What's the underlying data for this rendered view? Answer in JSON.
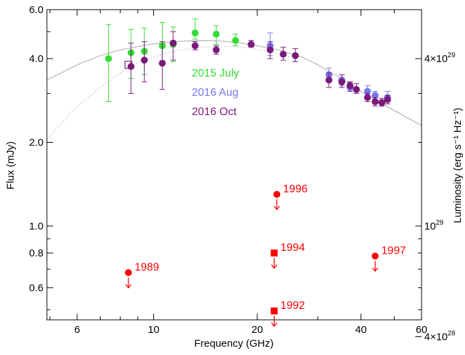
{
  "chart_data": {
    "type": "scatter",
    "xlabel": "Frequency (GHz)",
    "ylabel": "Flux (mJy)",
    "y2label": "Luminosity (erg s⁻¹ Hz⁻¹)",
    "xscale": "log",
    "yscale": "log",
    "xlim": [
      4.9,
      60
    ],
    "ylim": [
      0.46,
      6.0
    ],
    "xticks": [
      {
        "value": 6,
        "label": "6"
      },
      {
        "value": 10,
        "label": "10"
      },
      {
        "value": 20,
        "label": "20"
      },
      {
        "value": 40,
        "label": "40"
      },
      {
        "value": 60,
        "label": "60"
      }
    ],
    "yticks": [
      {
        "value": 0.6,
        "label": "0.6"
      },
      {
        "value": 0.8,
        "label": "0.8"
      },
      {
        "value": 1.0,
        "label": "1.0"
      },
      {
        "value": 2.0,
        "label": "2.0"
      },
      {
        "value": 4.0,
        "label": "4.0"
      },
      {
        "value": 6.0,
        "label": "6.0"
      }
    ],
    "y2ticks": [
      {
        "value": 4.0,
        "mantissa": "4×10",
        "exp": "29"
      },
      {
        "value": 1.0,
        "mantissa": "10",
        "exp": "29"
      },
      {
        "value": 0.4,
        "mantissa": "4×10",
        "exp": "28"
      }
    ],
    "legend_position": "center-left",
    "series": [
      {
        "name": "2015 July",
        "color": "#33dd33",
        "marker": "circle",
        "points": [
          {
            "x": 7.4,
            "y": 4.0,
            "lo": 2.8,
            "hi": 5.3
          },
          {
            "x": 8.6,
            "y": 4.2,
            "lo": 3.4,
            "hi": 5.1
          },
          {
            "x": 9.4,
            "y": 4.25,
            "lo": 3.5,
            "hi": 5.15
          },
          {
            "x": 10.6,
            "y": 4.45,
            "lo": 3.8,
            "hi": 5.4
          },
          {
            "x": 11.4,
            "y": 4.5,
            "lo": 3.9,
            "hi": 5.2
          },
          {
            "x": 13.2,
            "y": 4.95,
            "lo": 4.7,
            "hi": 5.55
          },
          {
            "x": 15.2,
            "y": 4.9,
            "lo": 4.5,
            "hi": 5.25
          },
          {
            "x": 17.3,
            "y": 4.65,
            "lo": 4.45,
            "hi": 4.9
          }
        ]
      },
      {
        "name": "2016 Aug",
        "color": "#7777ee",
        "marker": "circle",
        "points": [
          {
            "x": 21.8,
            "y": 4.45,
            "lo": 4.1,
            "hi": 4.95
          },
          {
            "x": 32.3,
            "y": 3.5,
            "lo": 3.3,
            "hi": 3.7
          },
          {
            "x": 35.2,
            "y": 3.35,
            "lo": 3.2,
            "hi": 3.5
          },
          {
            "x": 37.2,
            "y": 3.15,
            "lo": 3.05,
            "hi": 3.3
          },
          {
            "x": 41.8,
            "y": 3.05,
            "lo": 2.95,
            "hi": 3.2
          },
          {
            "x": 44.0,
            "y": 2.95,
            "lo": 2.85,
            "hi": 3.05
          },
          {
            "x": 47.8,
            "y": 2.9,
            "lo": 2.8,
            "hi": 3.05
          }
        ]
      },
      {
        "name": "2016 Oct",
        "color": "#7a1a7a",
        "marker": "circle",
        "points": [
          {
            "x": 8.6,
            "y": 3.75,
            "lo": 3.0,
            "hi": 4.55
          },
          {
            "x": 9.4,
            "y": 3.95,
            "lo": 3.3,
            "hi": 4.6
          },
          {
            "x": 10.6,
            "y": 3.85,
            "lo": 3.1,
            "hi": 4.6
          },
          {
            "x": 11.4,
            "y": 4.55,
            "lo": 3.95,
            "hi": 5.0
          },
          {
            "x": 13.2,
            "y": 4.45,
            "lo": 4.3,
            "hi": 4.6
          },
          {
            "x": 15.2,
            "y": 4.3,
            "lo": 4.15,
            "hi": 4.45
          },
          {
            "x": 19.2,
            "y": 4.5,
            "lo": 4.4,
            "hi": 4.65
          },
          {
            "x": 21.8,
            "y": 4.3,
            "lo": 4.0,
            "hi": 4.6
          },
          {
            "x": 23.8,
            "y": 4.15,
            "lo": 3.95,
            "hi": 4.4
          },
          {
            "x": 25.8,
            "y": 4.1,
            "lo": 3.9,
            "hi": 4.35
          },
          {
            "x": 32.3,
            "y": 3.35,
            "lo": 3.15,
            "hi": 3.55
          },
          {
            "x": 35.2,
            "y": 3.3,
            "lo": 3.15,
            "hi": 3.5
          },
          {
            "x": 37.2,
            "y": 3.2,
            "lo": 3.05,
            "hi": 3.3
          },
          {
            "x": 38.8,
            "y": 3.1,
            "lo": 3.0,
            "hi": 3.25
          },
          {
            "x": 41.8,
            "y": 2.9,
            "lo": 2.8,
            "hi": 3.0
          },
          {
            "x": 44.0,
            "y": 2.8,
            "lo": 2.7,
            "hi": 2.9
          },
          {
            "x": 46.0,
            "y": 2.78,
            "lo": 2.7,
            "hi": 2.88
          },
          {
            "x": 47.8,
            "y": 2.85,
            "lo": 2.75,
            "hi": 2.95
          }
        ]
      }
    ],
    "open_marker": {
      "x": 8.45,
      "y": 3.8,
      "color": "#7a1a7a",
      "marker": "open-square"
    },
    "model_curves": [
      {
        "style": "solid",
        "color": "#bbbbbb",
        "points": [
          [
            4.9,
            3.35
          ],
          [
            6,
            3.8
          ],
          [
            7,
            4.1
          ],
          [
            8,
            4.3
          ],
          [
            9,
            4.42
          ],
          [
            10,
            4.52
          ],
          [
            12,
            4.62
          ],
          [
            14,
            4.65
          ],
          [
            16,
            4.62
          ],
          [
            18,
            4.55
          ],
          [
            20,
            4.45
          ],
          [
            23,
            4.3
          ],
          [
            27,
            4.05
          ],
          [
            30,
            3.8
          ],
          [
            35,
            3.4
          ],
          [
            40,
            3.05
          ],
          [
            45,
            2.8
          ],
          [
            50,
            2.6
          ],
          [
            60,
            2.3
          ]
        ]
      },
      {
        "style": "dotted",
        "color": "#bbbbbb",
        "points": [
          [
            4.9,
            2.05
          ],
          [
            5.5,
            2.4
          ],
          [
            6,
            2.7
          ],
          [
            7,
            3.15
          ],
          [
            8,
            3.55
          ],
          [
            9,
            3.85
          ],
          [
            10,
            4.05
          ],
          [
            11,
            4.2
          ],
          [
            12,
            4.3
          ],
          [
            14,
            4.4
          ],
          [
            16,
            4.42
          ],
          [
            18,
            4.4
          ],
          [
            20,
            4.32
          ],
          [
            22,
            4.22
          ],
          [
            25,
            4.05
          ]
        ]
      }
    ],
    "upper_limits": [
      {
        "label": "1989",
        "x": 8.45,
        "y": 0.68,
        "marker": "circle"
      },
      {
        "label": "1996",
        "x": 22.8,
        "y": 1.3,
        "marker": "circle"
      },
      {
        "label": "1994",
        "x": 22.4,
        "y": 0.8,
        "marker": "square"
      },
      {
        "label": "1997",
        "x": 44.0,
        "y": 0.78,
        "marker": "circle"
      },
      {
        "label": "1992",
        "x": 22.4,
        "y": 0.495,
        "marker": "square"
      }
    ],
    "upper_limit_color": "#ff0000"
  }
}
